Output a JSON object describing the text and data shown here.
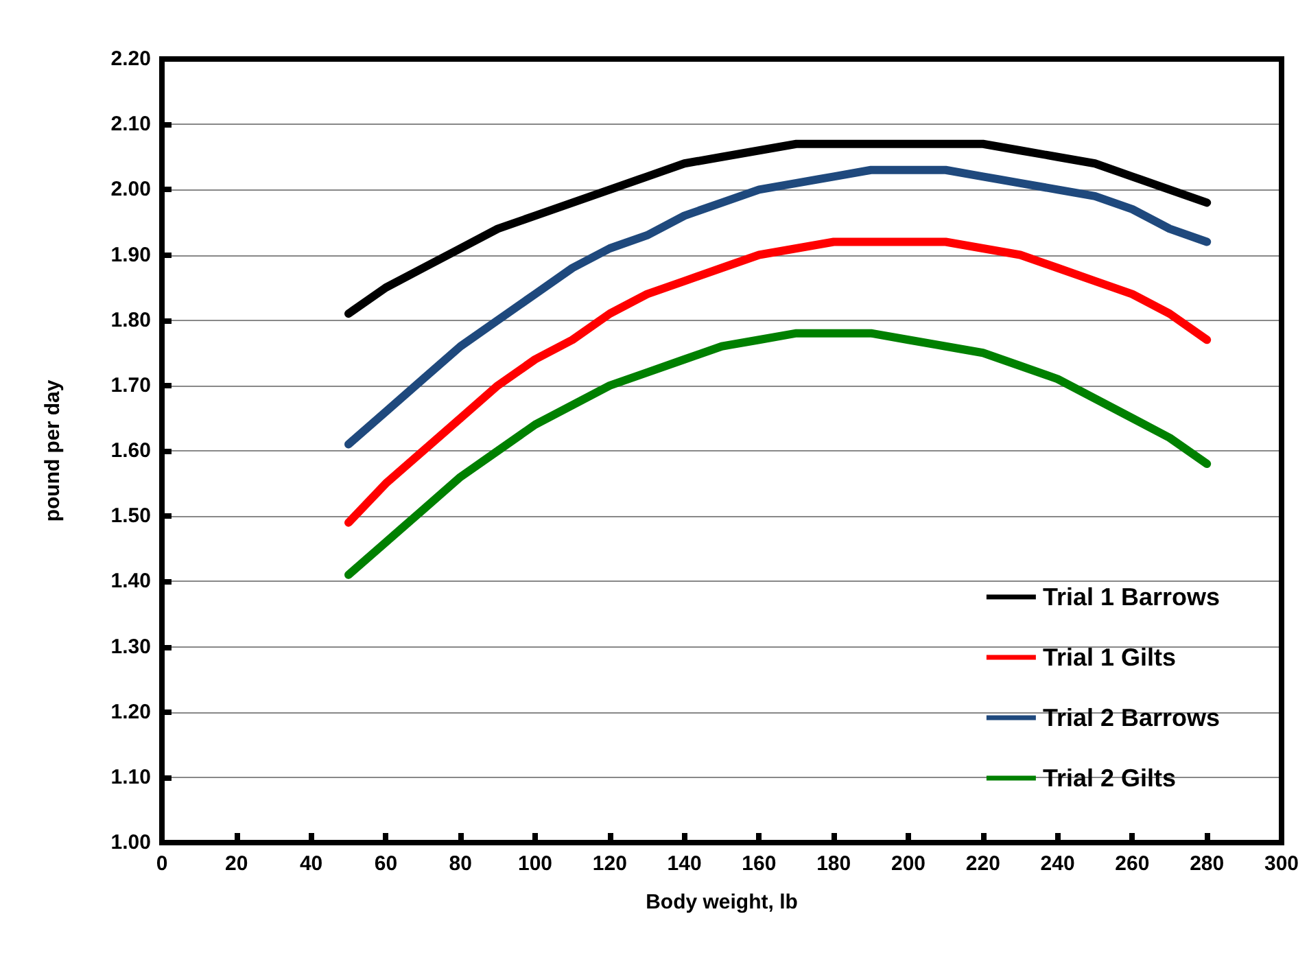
{
  "chart_data": {
    "type": "line",
    "xlabel": "Body weight, lb",
    "ylabel": "pound per day",
    "x": [
      50,
      60,
      70,
      80,
      90,
      100,
      110,
      120,
      130,
      140,
      150,
      160,
      170,
      180,
      190,
      200,
      210,
      220,
      230,
      240,
      250,
      260,
      270,
      280
    ],
    "series": [
      {
        "name": "Trial 1 Barrows",
        "color": "#000000",
        "values": [
          1.81,
          1.85,
          1.88,
          1.91,
          1.94,
          1.96,
          1.98,
          2.0,
          2.02,
          2.04,
          2.05,
          2.06,
          2.07,
          2.07,
          2.07,
          2.07,
          2.07,
          2.07,
          2.06,
          2.05,
          2.04,
          2.02,
          2.0,
          1.98
        ]
      },
      {
        "name": "Trial 1 Gilts",
        "color": "#ff0000",
        "values": [
          1.49,
          1.55,
          1.6,
          1.65,
          1.7,
          1.74,
          1.77,
          1.81,
          1.84,
          1.86,
          1.88,
          1.9,
          1.91,
          1.92,
          1.92,
          1.92,
          1.92,
          1.91,
          1.9,
          1.88,
          1.86,
          1.84,
          1.81,
          1.77
        ]
      },
      {
        "name": "Trial 2 Barrows",
        "color": "#1f497d",
        "values": [
          1.61,
          1.66,
          1.71,
          1.76,
          1.8,
          1.84,
          1.88,
          1.91,
          1.93,
          1.96,
          1.98,
          2.0,
          2.01,
          2.02,
          2.03,
          2.03,
          2.03,
          2.02,
          2.01,
          2.0,
          1.99,
          1.97,
          1.94,
          1.92
        ]
      },
      {
        "name": "Trial 2 Gilts",
        "color": "#008000",
        "values": [
          1.41,
          1.46,
          1.51,
          1.56,
          1.6,
          1.64,
          1.67,
          1.7,
          1.72,
          1.74,
          1.76,
          1.77,
          1.78,
          1.78,
          1.78,
          1.77,
          1.76,
          1.75,
          1.73,
          1.71,
          1.68,
          1.65,
          1.62,
          1.58
        ]
      }
    ],
    "xlim": [
      0,
      300
    ],
    "xticks": [
      0,
      20,
      40,
      60,
      80,
      100,
      120,
      140,
      160,
      180,
      200,
      220,
      240,
      260,
      280,
      300
    ],
    "ylim": [
      1.0,
      2.2
    ],
    "yticks": [
      {
        "value": 1.0,
        "label": "1.00"
      },
      {
        "value": 1.1,
        "label": "1.10"
      },
      {
        "value": 1.2,
        "label": "1.20"
      },
      {
        "value": 1.3,
        "label": "1.30"
      },
      {
        "value": 1.4,
        "label": "1.40"
      },
      {
        "value": 1.5,
        "label": "1.50"
      },
      {
        "value": 1.6,
        "label": "1.60"
      },
      {
        "value": 1.7,
        "label": "1.70"
      },
      {
        "value": 1.8,
        "label": "1.80"
      },
      {
        "value": 1.9,
        "label": "1.90"
      },
      {
        "value": 2.0,
        "label": "2.00"
      },
      {
        "value": 2.1,
        "label": "2.10"
      },
      {
        "value": 2.2,
        "label": "2.20"
      }
    ],
    "grid": "y",
    "legend": "bottom right",
    "marker": "none",
    "line_style": "solid"
  }
}
